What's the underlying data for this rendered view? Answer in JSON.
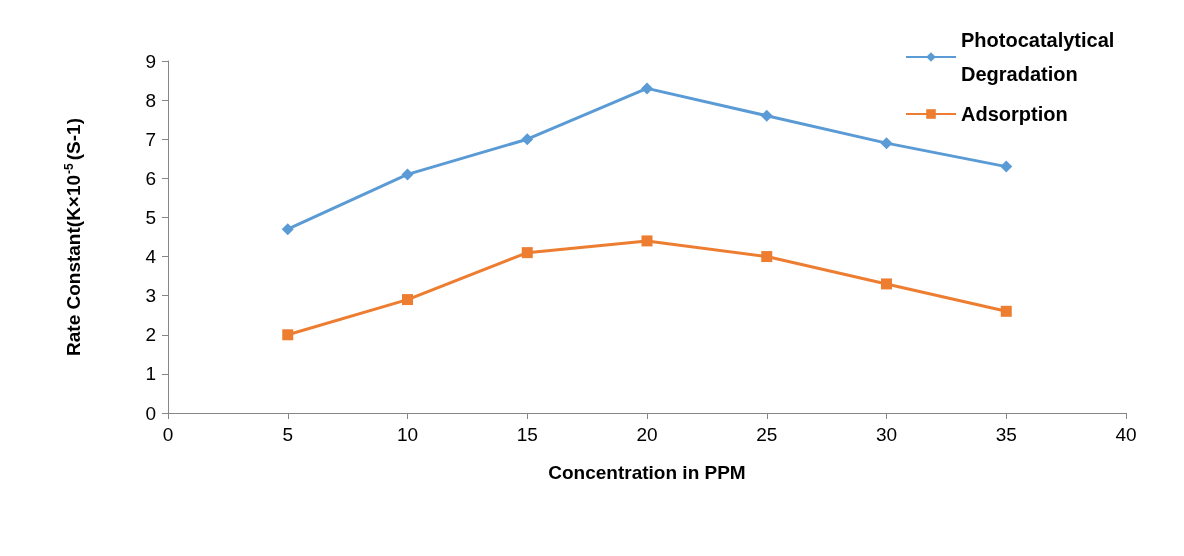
{
  "chart_data": {
    "type": "line",
    "xlabel": "Concentration in PPM",
    "ylabel": "Rate Constant(K×10$^{-5}$(S-1)",
    "xlim": [
      0,
      40
    ],
    "xticks": [
      0,
      5,
      10,
      15,
      20,
      25,
      30,
      35,
      40
    ],
    "ylim": [
      0,
      9
    ],
    "yticks": [
      0,
      1,
      2,
      3,
      4,
      5,
      6,
      7,
      8,
      9
    ],
    "grid": false,
    "legend": "top right",
    "series": [
      {
        "name": "Photocatalytical Degradation",
        "color": "#5b9bd5",
        "marker": "diamond",
        "x": [
          5,
          10,
          15,
          20,
          25,
          30,
          35
        ],
        "values": [
          4.7,
          6.1,
          7.0,
          8.3,
          7.6,
          6.9,
          6.3
        ]
      },
      {
        "name": "Adsorption",
        "color": "#ed7d31",
        "marker": "square",
        "x": [
          5,
          10,
          15,
          20,
          25,
          30,
          35
        ],
        "values": [
          2.0,
          2.9,
          4.1,
          4.4,
          4.0,
          3.3,
          2.6
        ]
      }
    ]
  }
}
